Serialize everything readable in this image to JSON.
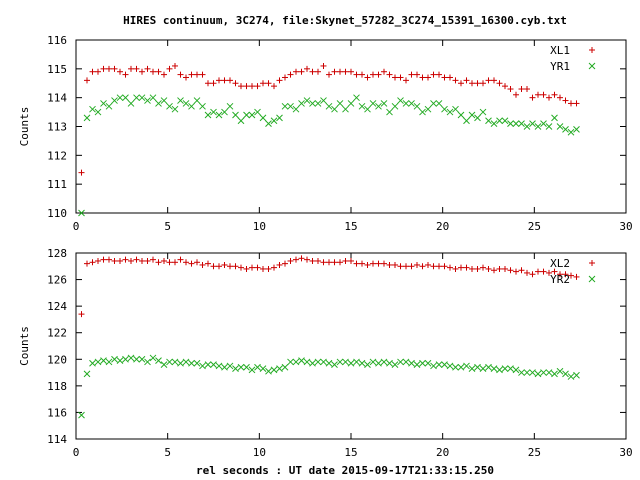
{
  "page": {
    "title": "HIRES continuum, 3C274, file:Skynet_57282_3C274_15391_16300.cyb.txt",
    "xlabel": "rel seconds : UT date 2015-09-17T21:33:15.250"
  },
  "colors": {
    "xl": "#cc0000",
    "yr": "#22aa22",
    "axis": "#000000"
  },
  "chart_data": [
    {
      "type": "scatter",
      "title": "HIRES continuum, 3C274, file:Skynet_57282_3C274_15391_16300.cyb.txt",
      "xlabel": "",
      "ylabel": "Counts",
      "xlim": [
        0,
        30
      ],
      "ylim": [
        110,
        116
      ],
      "x_ticks": [
        "0",
        "5",
        "10",
        "15",
        "20",
        "25",
        "30"
      ],
      "y_ticks": [
        "110",
        "111",
        "112",
        "113",
        "114",
        "115",
        "116"
      ],
      "legend_position": "top-right",
      "series": [
        {
          "name": "XL1",
          "marker": "plus",
          "color": "#cc0000",
          "x": [
            0.3,
            0.6,
            0.9,
            1.2,
            1.5,
            1.8,
            2.1,
            2.4,
            2.7,
            3.0,
            3.3,
            3.6,
            3.9,
            4.2,
            4.5,
            4.8,
            5.1,
            5.4,
            5.7,
            6.0,
            6.3,
            6.6,
            6.9,
            7.2,
            7.5,
            7.8,
            8.1,
            8.4,
            8.7,
            9.0,
            9.3,
            9.6,
            9.9,
            10.2,
            10.5,
            10.8,
            11.1,
            11.4,
            11.7,
            12.0,
            12.3,
            12.6,
            12.9,
            13.2,
            13.5,
            13.8,
            14.1,
            14.4,
            14.7,
            15.0,
            15.3,
            15.6,
            15.9,
            16.2,
            16.5,
            16.8,
            17.1,
            17.4,
            17.7,
            18.0,
            18.3,
            18.6,
            18.9,
            19.2,
            19.5,
            19.8,
            20.1,
            20.4,
            20.7,
            21.0,
            21.3,
            21.6,
            21.9,
            22.2,
            22.5,
            22.8,
            23.1,
            23.4,
            23.7,
            24.0,
            24.3,
            24.6,
            24.9,
            25.2,
            25.5,
            25.8,
            26.1,
            26.4,
            26.7,
            27.0,
            27.3
          ],
          "values": [
            111.4,
            114.6,
            114.9,
            114.9,
            115.0,
            115.0,
            115.0,
            114.9,
            114.8,
            115.0,
            115.0,
            114.9,
            115.0,
            114.9,
            114.9,
            114.8,
            115.0,
            115.1,
            114.8,
            114.7,
            114.8,
            114.8,
            114.8,
            114.5,
            114.5,
            114.6,
            114.6,
            114.6,
            114.5,
            114.4,
            114.4,
            114.4,
            114.4,
            114.5,
            114.5,
            114.4,
            114.6,
            114.7,
            114.8,
            114.9,
            114.9,
            115.0,
            114.9,
            114.9,
            115.1,
            114.8,
            114.9,
            114.9,
            114.9,
            114.9,
            114.8,
            114.8,
            114.7,
            114.8,
            114.8,
            114.9,
            114.8,
            114.7,
            114.7,
            114.6,
            114.8,
            114.8,
            114.7,
            114.7,
            114.8,
            114.8,
            114.7,
            114.7,
            114.6,
            114.5,
            114.6,
            114.5,
            114.5,
            114.5,
            114.6,
            114.6,
            114.5,
            114.4,
            114.3,
            114.1,
            114.3,
            114.3,
            114.0,
            114.1,
            114.1,
            114.0,
            114.1,
            114.0,
            113.9,
            113.8,
            113.8
          ]
        },
        {
          "name": "YR1",
          "marker": "cross",
          "color": "#22aa22",
          "x": [
            0.3,
            0.6,
            0.9,
            1.2,
            1.5,
            1.8,
            2.1,
            2.4,
            2.7,
            3.0,
            3.3,
            3.6,
            3.9,
            4.2,
            4.5,
            4.8,
            5.1,
            5.4,
            5.7,
            6.0,
            6.3,
            6.6,
            6.9,
            7.2,
            7.5,
            7.8,
            8.1,
            8.4,
            8.7,
            9.0,
            9.3,
            9.6,
            9.9,
            10.2,
            10.5,
            10.8,
            11.1,
            11.4,
            11.7,
            12.0,
            12.3,
            12.6,
            12.9,
            13.2,
            13.5,
            13.8,
            14.1,
            14.4,
            14.7,
            15.0,
            15.3,
            15.6,
            15.9,
            16.2,
            16.5,
            16.8,
            17.1,
            17.4,
            17.7,
            18.0,
            18.3,
            18.6,
            18.9,
            19.2,
            19.5,
            19.8,
            20.1,
            20.4,
            20.7,
            21.0,
            21.3,
            21.6,
            21.9,
            22.2,
            22.5,
            22.8,
            23.1,
            23.4,
            23.7,
            24.0,
            24.3,
            24.6,
            24.9,
            25.2,
            25.5,
            25.8,
            26.1,
            26.4,
            26.7,
            27.0,
            27.3
          ],
          "values": [
            110.0,
            113.3,
            113.6,
            113.5,
            113.8,
            113.7,
            113.9,
            114.0,
            114.0,
            113.8,
            114.0,
            114.0,
            113.9,
            114.0,
            113.8,
            113.9,
            113.7,
            113.6,
            113.9,
            113.8,
            113.7,
            113.9,
            113.7,
            113.4,
            113.5,
            113.4,
            113.5,
            113.7,
            113.4,
            113.2,
            113.4,
            113.4,
            113.5,
            113.3,
            113.1,
            113.2,
            113.3,
            113.7,
            113.7,
            113.6,
            113.8,
            113.9,
            113.8,
            113.8,
            113.9,
            113.7,
            113.6,
            113.8,
            113.6,
            113.8,
            114.0,
            113.7,
            113.6,
            113.8,
            113.7,
            113.8,
            113.5,
            113.7,
            113.9,
            113.8,
            113.8,
            113.7,
            113.5,
            113.6,
            113.8,
            113.8,
            113.6,
            113.5,
            113.6,
            113.4,
            113.2,
            113.4,
            113.3,
            113.5,
            113.2,
            113.1,
            113.2,
            113.2,
            113.1,
            113.1,
            113.1,
            113.0,
            113.1,
            113.0,
            113.1,
            113.0,
            113.3,
            113.0,
            112.9,
            112.8,
            112.9
          ]
        }
      ]
    },
    {
      "type": "scatter",
      "title": "",
      "xlabel": "rel seconds : UT date 2015-09-17T21:33:15.250",
      "ylabel": "Counts",
      "xlim": [
        0,
        30
      ],
      "ylim": [
        114,
        128
      ],
      "x_ticks": [
        "0",
        "5",
        "10",
        "15",
        "20",
        "25",
        "30"
      ],
      "y_ticks": [
        "114",
        "116",
        "118",
        "120",
        "122",
        "124",
        "126",
        "128"
      ],
      "legend_position": "top-right",
      "series": [
        {
          "name": "XL2",
          "marker": "plus",
          "color": "#cc0000",
          "x": [
            0.3,
            0.6,
            0.9,
            1.2,
            1.5,
            1.8,
            2.1,
            2.4,
            2.7,
            3.0,
            3.3,
            3.6,
            3.9,
            4.2,
            4.5,
            4.8,
            5.1,
            5.4,
            5.7,
            6.0,
            6.3,
            6.6,
            6.9,
            7.2,
            7.5,
            7.8,
            8.1,
            8.4,
            8.7,
            9.0,
            9.3,
            9.6,
            9.9,
            10.2,
            10.5,
            10.8,
            11.1,
            11.4,
            11.7,
            12.0,
            12.3,
            12.6,
            12.9,
            13.2,
            13.5,
            13.8,
            14.1,
            14.4,
            14.7,
            15.0,
            15.3,
            15.6,
            15.9,
            16.2,
            16.5,
            16.8,
            17.1,
            17.4,
            17.7,
            18.0,
            18.3,
            18.6,
            18.9,
            19.2,
            19.5,
            19.8,
            20.1,
            20.4,
            20.7,
            21.0,
            21.3,
            21.6,
            21.9,
            22.2,
            22.5,
            22.8,
            23.1,
            23.4,
            23.7,
            24.0,
            24.3,
            24.6,
            24.9,
            25.2,
            25.5,
            25.8,
            26.1,
            26.4,
            26.7,
            27.0,
            27.3
          ],
          "values": [
            123.4,
            127.2,
            127.3,
            127.4,
            127.5,
            127.5,
            127.4,
            127.4,
            127.5,
            127.4,
            127.5,
            127.4,
            127.4,
            127.5,
            127.3,
            127.4,
            127.3,
            127.3,
            127.5,
            127.3,
            127.2,
            127.3,
            127.1,
            127.2,
            127.0,
            127.0,
            127.1,
            127.0,
            127.0,
            126.9,
            126.8,
            126.9,
            126.9,
            126.8,
            126.8,
            126.9,
            127.1,
            127.2,
            127.4,
            127.5,
            127.6,
            127.5,
            127.4,
            127.4,
            127.3,
            127.3,
            127.3,
            127.3,
            127.4,
            127.4,
            127.2,
            127.2,
            127.1,
            127.2,
            127.2,
            127.2,
            127.1,
            127.1,
            127.0,
            127.0,
            127.0,
            127.1,
            127.0,
            127.1,
            127.0,
            127.0,
            127.0,
            126.9,
            126.8,
            126.9,
            126.9,
            126.8,
            126.8,
            126.9,
            126.8,
            126.7,
            126.8,
            126.8,
            126.7,
            126.6,
            126.7,
            126.5,
            126.4,
            126.6,
            126.6,
            126.5,
            126.6,
            126.4,
            126.4,
            126.3,
            126.2
          ]
        },
        {
          "name": "YR2",
          "marker": "cross",
          "color": "#22aa22",
          "x": [
            0.3,
            0.6,
            0.9,
            1.2,
            1.5,
            1.8,
            2.1,
            2.4,
            2.7,
            3.0,
            3.3,
            3.6,
            3.9,
            4.2,
            4.5,
            4.8,
            5.1,
            5.4,
            5.7,
            6.0,
            6.3,
            6.6,
            6.9,
            7.2,
            7.5,
            7.8,
            8.1,
            8.4,
            8.7,
            9.0,
            9.3,
            9.6,
            9.9,
            10.2,
            10.5,
            10.8,
            11.1,
            11.4,
            11.7,
            12.0,
            12.3,
            12.6,
            12.9,
            13.2,
            13.5,
            13.8,
            14.1,
            14.4,
            14.7,
            15.0,
            15.3,
            15.6,
            15.9,
            16.2,
            16.5,
            16.8,
            17.1,
            17.4,
            17.7,
            18.0,
            18.3,
            18.6,
            18.9,
            19.2,
            19.5,
            19.8,
            20.1,
            20.4,
            20.7,
            21.0,
            21.3,
            21.6,
            21.9,
            22.2,
            22.5,
            22.8,
            23.1,
            23.4,
            23.7,
            24.0,
            24.3,
            24.6,
            24.9,
            25.2,
            25.5,
            25.8,
            26.1,
            26.4,
            26.7,
            27.0,
            27.3
          ],
          "values": [
            115.8,
            118.9,
            119.7,
            119.8,
            119.9,
            119.8,
            120.0,
            119.9,
            120.0,
            120.1,
            120.0,
            120.0,
            119.8,
            120.1,
            119.9,
            119.6,
            119.8,
            119.8,
            119.7,
            119.8,
            119.7,
            119.7,
            119.5,
            119.6,
            119.6,
            119.5,
            119.4,
            119.5,
            119.3,
            119.4,
            119.4,
            119.2,
            119.4,
            119.3,
            119.1,
            119.2,
            119.3,
            119.4,
            119.8,
            119.8,
            119.9,
            119.8,
            119.7,
            119.8,
            119.8,
            119.7,
            119.6,
            119.8,
            119.8,
            119.7,
            119.8,
            119.7,
            119.6,
            119.8,
            119.7,
            119.8,
            119.7,
            119.6,
            119.8,
            119.8,
            119.7,
            119.6,
            119.7,
            119.7,
            119.5,
            119.6,
            119.6,
            119.5,
            119.4,
            119.4,
            119.5,
            119.3,
            119.4,
            119.3,
            119.4,
            119.3,
            119.2,
            119.3,
            119.3,
            119.2,
            119.0,
            119.0,
            119.0,
            118.9,
            119.0,
            119.0,
            118.9,
            119.1,
            118.9,
            118.7,
            118.8
          ]
        }
      ]
    }
  ]
}
